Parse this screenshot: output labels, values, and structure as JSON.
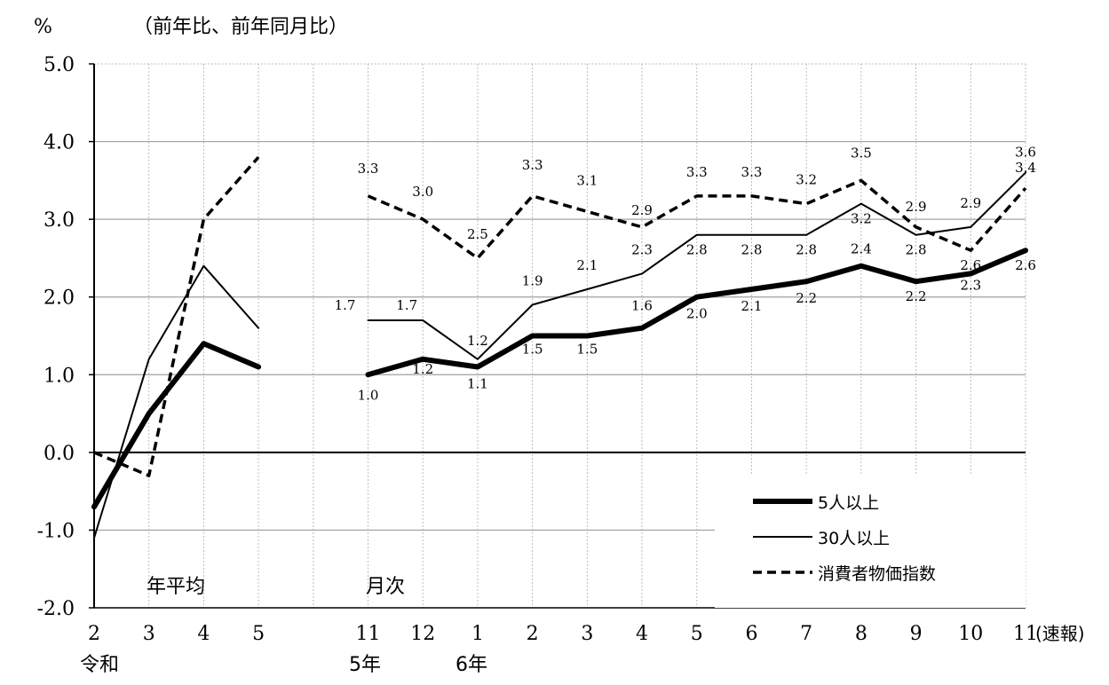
{
  "unit_label": "%",
  "subtitle": "（前年比、前年同月比）",
  "section_labels": {
    "annual": "年平均",
    "monthly": "月次"
  },
  "x_year_labels": [
    "令和",
    "5年",
    "6年"
  ],
  "x_suffix": "(速報)",
  "colors": {
    "series": "#000000",
    "zero_axis": "#000000",
    "gridline": "#a0a0a0",
    "vgrid": "#bdbdbd"
  },
  "chart_data": {
    "type": "line",
    "ylim": [
      -2.0,
      5.0
    ],
    "y_ticks": [
      "5.0",
      "4.0",
      "3.0",
      "2.0",
      "1.0",
      "0.0",
      "-1.0",
      "-2.0"
    ],
    "grid": true,
    "legend_position": "bottom-right",
    "x": [
      "2",
      "3",
      "4",
      "5",
      "",
      "11",
      "12",
      "1",
      "2",
      "3",
      "4",
      "5",
      "6",
      "7",
      "8",
      "9",
      "10",
      "11"
    ],
    "series": [
      {
        "name": "5人以上",
        "style": "thick",
        "values": [
          -0.7,
          0.5,
          1.4,
          1.1,
          null,
          1.0,
          1.2,
          1.1,
          1.5,
          1.5,
          1.6,
          2.0,
          2.1,
          2.2,
          2.4,
          2.2,
          2.3,
          2.6
        ],
        "labels": [
          "",
          "",
          "",
          "",
          "",
          "1.0",
          "1.2",
          "1.1",
          "1.5",
          "1.5",
          "1.6",
          "2.0",
          "2.1",
          "2.2",
          "2.4",
          "2.2",
          "2.3",
          "2.6"
        ]
      },
      {
        "name": "30人以上",
        "style": "thin",
        "values": [
          -1.1,
          1.2,
          2.4,
          1.6,
          null,
          1.7,
          1.7,
          1.2,
          1.9,
          2.1,
          2.3,
          2.8,
          2.8,
          2.8,
          3.2,
          2.8,
          2.9,
          3.6
        ],
        "labels": [
          "",
          "",
          "",
          "",
          "",
          "1.7",
          "1.7",
          "1.2",
          "1.9",
          "2.1",
          "2.3",
          "2.8",
          "2.8",
          "2.8",
          "3.2",
          "2.8",
          "2.9",
          "3.6"
        ]
      },
      {
        "name": "消費者物価指数",
        "style": "dashed",
        "values": [
          0.0,
          -0.3,
          3.0,
          3.8,
          null,
          3.3,
          3.0,
          2.5,
          3.3,
          3.1,
          2.9,
          3.3,
          3.3,
          3.2,
          3.5,
          2.9,
          2.6,
          3.4
        ],
        "labels": [
          "",
          "",
          "",
          "",
          "",
          "3.3",
          "3.0",
          "2.5",
          "3.3",
          "3.1",
          "2.9",
          "3.3",
          "3.3",
          "3.2",
          "3.5",
          "2.9",
          "2.6",
          "3.4"
        ]
      }
    ]
  }
}
